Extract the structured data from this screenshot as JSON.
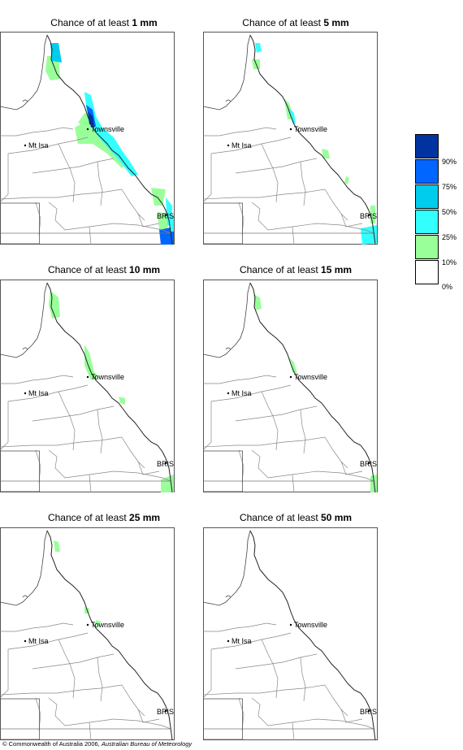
{
  "title_prefix": "Chance of at least",
  "panels": [
    {
      "amount": "1 mm"
    },
    {
      "amount": "5 mm"
    },
    {
      "amount": "10 mm"
    },
    {
      "amount": "15 mm"
    },
    {
      "amount": "25 mm"
    },
    {
      "amount": "50 mm"
    }
  ],
  "places": {
    "townsville": "Townsville",
    "mt_isa": "Mt Isa",
    "brisbane": "BRIS"
  },
  "legend": {
    "ticks": [
      "90%",
      "75%",
      "50%",
      "25%",
      "10%",
      "0%"
    ],
    "colors": [
      "#0033a0",
      "#0066ff",
      "#00ccee",
      "#33ffff",
      "#99ff99",
      "#ffffff"
    ]
  },
  "footer": {
    "copyright": "© Commonwealth of Australia 2006,",
    "org": "Australian Bureau of Meteorology"
  }
}
